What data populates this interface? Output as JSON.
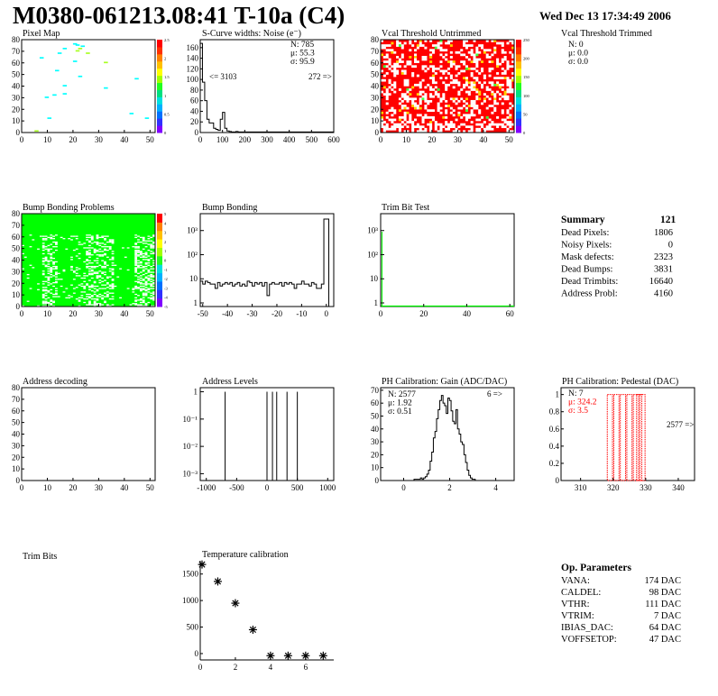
{
  "header": {
    "title": "M0380-061213.08:41 T-10a (C4)",
    "datetime": "Wed Dec 13 17:34:49 2006"
  },
  "chart_data": [
    {
      "id": "pixel-map",
      "type": "heatmap",
      "title": "Pixel Map",
      "x_ticks": [
        "0",
        "10",
        "20",
        "30",
        "40",
        "50"
      ],
      "y_ticks": [
        "0",
        "10",
        "20",
        "30",
        "40",
        "50",
        "60",
        "70",
        "80"
      ],
      "xlim": [
        0,
        52
      ],
      "ylim": [
        0,
        80
      ],
      "z_ticks": [
        "0",
        "0.5",
        "1",
        "1.5",
        "2",
        "2.5"
      ],
      "cells": [
        [
          20,
          76,
          1
        ],
        [
          21,
          75,
          1
        ],
        [
          23,
          74,
          1
        ],
        [
          16,
          72,
          1
        ],
        [
          22,
          72,
          2
        ],
        [
          21,
          70,
          2
        ],
        [
          14,
          68,
          1
        ],
        [
          25,
          68,
          2
        ],
        [
          7,
          64,
          1
        ],
        [
          32,
          60,
          2
        ],
        [
          20,
          61,
          1
        ],
        [
          13,
          53,
          1
        ],
        [
          16,
          40,
          1
        ],
        [
          9,
          30,
          1
        ],
        [
          12,
          32,
          1
        ],
        [
          16,
          33,
          1
        ],
        [
          22,
          48,
          1
        ],
        [
          42,
          16,
          1
        ],
        [
          32,
          38,
          1
        ],
        [
          48,
          12,
          1
        ],
        [
          44,
          46,
          1
        ],
        [
          10,
          12,
          1
        ],
        [
          5,
          1,
          2
        ]
      ]
    },
    {
      "id": "s-curve-widths",
      "type": "bar",
      "title": "S-Curve widths: Noise (e⁻)",
      "x_ticks": [
        "0",
        "100",
        "200",
        "300",
        "400",
        "500",
        "600"
      ],
      "y_ticks": [
        "0",
        "20",
        "40",
        "60",
        "80",
        "100",
        "120",
        "140",
        "160"
      ],
      "xlim": [
        0,
        600
      ],
      "ylim": [
        0,
        175
      ],
      "x": [
        10,
        20,
        30,
        40,
        50,
        60,
        70,
        80,
        90,
        100,
        110,
        120,
        130,
        140,
        150,
        160,
        170,
        180,
        190,
        200,
        220,
        250,
        300,
        330,
        400,
        450,
        500,
        540
      ],
      "values": [
        168,
        95,
        60,
        25,
        18,
        18,
        8,
        6,
        4,
        25,
        38,
        8,
        3,
        2,
        1,
        1,
        2,
        1,
        1,
        1,
        1,
        1,
        1,
        1,
        1,
        1,
        1,
        1
      ],
      "stats": {
        "N": "785",
        "mu": "55.3",
        "sigma": "95.9"
      },
      "underflow_label": "<= 3103",
      "overflow_label": "272 =>"
    },
    {
      "id": "vcal-threshold-untrimmed",
      "type": "heatmap",
      "title": "Vcal Threshold Untrimmed",
      "x_ticks": [
        "0",
        "10",
        "20",
        "30",
        "40",
        "50"
      ],
      "y_ticks": [
        "0",
        "10",
        "20",
        "30",
        "40",
        "50",
        "60",
        "70",
        "80"
      ],
      "xlim": [
        0,
        52
      ],
      "ylim": [
        0,
        80
      ],
      "z_ticks": [
        "0",
        "50",
        "100",
        "150",
        "200",
        "250"
      ]
    },
    {
      "id": "vcal-threshold-trimmed",
      "type": "stats-only",
      "title": "Vcal Threshold Trimmed",
      "stats": {
        "N": "0",
        "mu": "0.0",
        "sigma": "0.0"
      }
    },
    {
      "id": "bump-bonding-problems",
      "type": "heatmap",
      "title": "Bump Bonding Problems",
      "x_ticks": [
        "0",
        "10",
        "20",
        "30",
        "40",
        "50"
      ],
      "y_ticks": [
        "0",
        "10",
        "20",
        "30",
        "40",
        "50",
        "60",
        "70",
        "80"
      ],
      "xlim": [
        0,
        52
      ],
      "ylim": [
        0,
        80
      ],
      "z_ticks": [
        "-5",
        "-4",
        "-3",
        "-2",
        "-1",
        "0",
        "1",
        "2",
        "3",
        "4",
        "5"
      ]
    },
    {
      "id": "bump-bonding",
      "type": "bar",
      "title": "Bump Bonding",
      "x_ticks": [
        "-50",
        "-40",
        "-30",
        "-20",
        "-10",
        "0"
      ],
      "y_ticks": [
        "1",
        "10",
        "10²",
        "10³"
      ],
      "xlim": [
        -51,
        3
      ],
      "log_y": true,
      "values": [
        8,
        6,
        8,
        7,
        6,
        6,
        4,
        7,
        5,
        6,
        7,
        6,
        7,
        5,
        6,
        7,
        5,
        6,
        5,
        8,
        7,
        5,
        7,
        6,
        7,
        5,
        7,
        2,
        6,
        7,
        6,
        6,
        7,
        5,
        7,
        6,
        7,
        6,
        4,
        6,
        6,
        8,
        6,
        6,
        5,
        7,
        6,
        4,
        4,
        6,
        3000,
        3000
      ]
    },
    {
      "id": "trim-bit-test",
      "type": "bar",
      "title": "Trim Bit Test",
      "x_ticks": [
        "0",
        "20",
        "40",
        "60"
      ],
      "y_ticks": [
        "1",
        "10",
        "10²",
        "10³"
      ],
      "xlim": [
        0,
        62
      ],
      "log_y": true
    },
    {
      "id": "address-decoding",
      "type": "heatmap",
      "title": "Address decoding",
      "x_ticks": [
        "0",
        "10",
        "20",
        "30",
        "40",
        "50"
      ],
      "y_ticks": [
        "0",
        "10",
        "20",
        "30",
        "40",
        "50",
        "60",
        "70",
        "80"
      ],
      "xlim": [
        0,
        52
      ],
      "ylim": [
        0,
        80
      ]
    },
    {
      "id": "address-levels",
      "type": "bar",
      "title": "Address Levels",
      "x_ticks": [
        "-1000",
        "-500",
        "0",
        "500",
        "1000"
      ],
      "y_ticks": [
        "10⁻³",
        "10⁻²",
        "10⁻¹",
        "1"
      ],
      "xlim": [
        -1100,
        1100
      ],
      "log_y": true,
      "x": [
        -690,
        0,
        90,
        160,
        330,
        500
      ],
      "values": [
        1,
        1,
        1,
        1,
        1,
        1
      ]
    },
    {
      "id": "ph-calibration-gain",
      "type": "bar",
      "title": "PH Calibration: Gain (ADC/DAC)",
      "x_ticks": [
        "0",
        "2",
        "4"
      ],
      "y_ticks": [
        "0",
        "10",
        "20",
        "30",
        "40",
        "50",
        "60",
        "70"
      ],
      "xlim": [
        -1,
        4.8
      ],
      "ylim": [
        0,
        72
      ],
      "values": [
        1,
        1,
        1,
        1,
        2,
        1,
        2,
        3,
        5,
        8,
        15,
        22,
        33,
        38,
        48,
        55,
        62,
        66,
        60,
        58,
        52,
        64,
        62,
        54,
        46,
        44,
        55,
        40,
        36,
        30,
        28,
        20,
        14,
        8,
        4,
        2,
        1,
        1
      ],
      "x_start": 0.45,
      "bin_width": 0.07,
      "stats": {
        "N": "2577",
        "mu": "1.92",
        "sigma": "0.51"
      },
      "overflow_label": "6 =>"
    },
    {
      "id": "ph-calibration-pedestal",
      "type": "bar",
      "title": "PH Calibration: Pedestal (DAC)",
      "x_ticks": [
        "310",
        "320",
        "330",
        "340"
      ],
      "y_ticks": [
        "0",
        "0.2",
        "0.4",
        "0.6",
        "0.8",
        "1"
      ],
      "xlim": [
        304,
        345
      ],
      "ylim": [
        0,
        1.08
      ],
      "x": [
        319,
        321,
        323,
        325,
        327,
        328,
        329
      ],
      "values": [
        1,
        1,
        1,
        1,
        1,
        1,
        1
      ],
      "stats": {
        "N": "7",
        "mu": "324.2",
        "sigma": "3.5"
      },
      "overflow_label": "2577 =>"
    },
    {
      "id": "temperature-calibration",
      "type": "scatter",
      "title": "Temperature calibration",
      "x_ticks": [
        "0",
        "2",
        "4",
        "6"
      ],
      "y_ticks": [
        "0",
        "500",
        "1000",
        "1500"
      ],
      "xlim": [
        0,
        7.6
      ],
      "ylim": [
        -120,
        1750
      ],
      "x": [
        0,
        1,
        2,
        3,
        4,
        5,
        6,
        7
      ],
      "values": [
        1680,
        1360,
        950,
        450,
        -40,
        -40,
        -40,
        -40
      ]
    }
  ],
  "panels": {
    "trim_bits_title": "Trim Bits"
  },
  "summary": {
    "title": "Summary",
    "total": "121",
    "rows": [
      {
        "label": "Dead Pixels:",
        "value": "1806"
      },
      {
        "label": "Noisy Pixels:",
        "value": "0"
      },
      {
        "label": "Mask defects:",
        "value": "2323"
      },
      {
        "label": "Dead Bumps:",
        "value": "3831"
      },
      {
        "label": "Dead Trimbits:",
        "value": "16640"
      },
      {
        "label": "Address Probl:",
        "value": "4160"
      }
    ]
  },
  "op_parameters": {
    "title": "Op. Parameters",
    "rows": [
      {
        "label": "VANA:",
        "value": "174 DAC"
      },
      {
        "label": "CALDEL:",
        "value": "98 DAC"
      },
      {
        "label": "VTHR:",
        "value": "111 DAC"
      },
      {
        "label": "VTRIM:",
        "value": "7 DAC"
      },
      {
        "label": "IBIAS_DAC:",
        "value": "64 DAC"
      },
      {
        "label": "VOFFSETOP:",
        "value": "47 DAC"
      }
    ]
  },
  "stat_labels": {
    "N": "N:",
    "mu": "μ:",
    "sigma": "σ:"
  },
  "colors": {
    "green": "#00ff00",
    "red": "#ff0000",
    "cyan": "#00ffff",
    "white": "#ffffff",
    "black": "#000000"
  }
}
